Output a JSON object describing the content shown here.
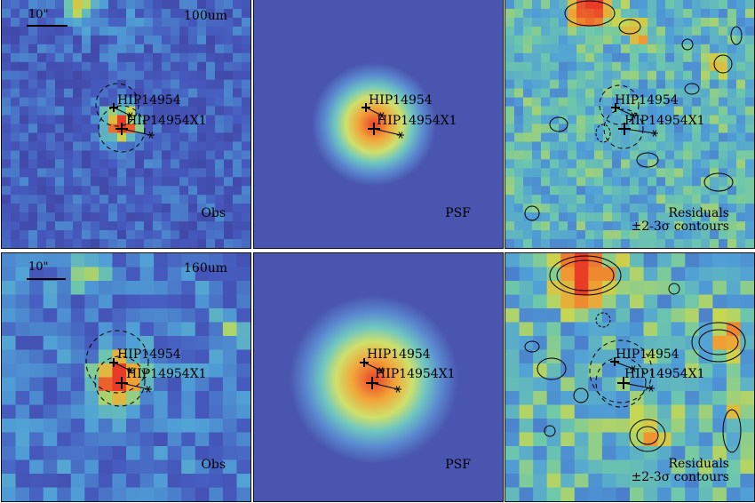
{
  "figure": {
    "rows": [
      {
        "band": "100um",
        "scale_bar": "10\"",
        "panels": [
          {
            "kind": "obs",
            "label": "Obs"
          },
          {
            "kind": "psf",
            "label": "PSF"
          },
          {
            "kind": "residual",
            "label_line1": "Residuals",
            "label_line2": "±2-3σ contours"
          }
        ]
      },
      {
        "band": "160um",
        "scale_bar": "10\"",
        "panels": [
          {
            "kind": "obs",
            "label": "Obs"
          },
          {
            "kind": "psf",
            "label": "PSF"
          },
          {
            "kind": "residual",
            "label_line1": "Residuals",
            "label_line2": "±2-3σ contours"
          }
        ]
      }
    ],
    "sources": {
      "primary": "HIP14954",
      "secondary": "HIP14954X1"
    },
    "colors": {
      "background_low": "#3e3f9c",
      "mid": "#5fb3d6",
      "high": "#e8412a",
      "contour": "#000000"
    }
  }
}
